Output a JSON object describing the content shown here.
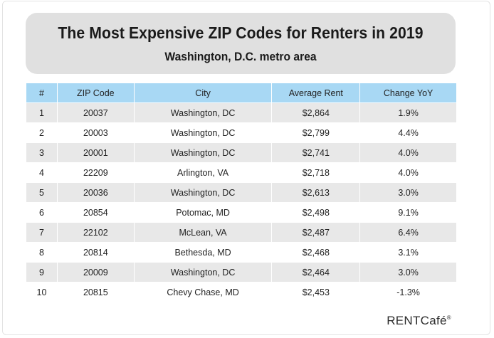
{
  "header": {
    "title": "The Most Expensive ZIP Codes for Renters in 2019",
    "subtitle": "Washington, D.C. metro area"
  },
  "table": {
    "columns": [
      "#",
      "ZIP Code",
      "City",
      "Average Rent",
      "Change YoY"
    ],
    "rows": [
      [
        "1",
        "20037",
        "Washington, DC",
        "$2,864",
        "1.9%"
      ],
      [
        "2",
        "20003",
        "Washington, DC",
        "$2,799",
        "4.4%"
      ],
      [
        "3",
        "20001",
        "Washington, DC",
        "$2,741",
        "4.0%"
      ],
      [
        "4",
        "22209",
        "Arlington, VA",
        "$2,718",
        "4.0%"
      ],
      [
        "5",
        "20036",
        "Washington, DC",
        "$2,613",
        "3.0%"
      ],
      [
        "6",
        "20854",
        "Potomac, MD",
        "$2,498",
        "9.1%"
      ],
      [
        "7",
        "22102",
        "McLean, VA",
        "$2,487",
        "6.4%"
      ],
      [
        "8",
        "20814",
        "Bethesda, MD",
        "$2,468",
        "3.1%"
      ],
      [
        "9",
        "20009",
        "Washington, DC",
        "$2,464",
        "3.0%"
      ],
      [
        "10",
        "20815",
        "Chevy Chase, MD",
        "$2,453",
        "-1.3%"
      ]
    ]
  },
  "logo": {
    "text": "RENTCafé",
    "mark": "®"
  },
  "colors": {
    "header_fill": "#a8d8f4",
    "banner_fill": "#e0e0e0",
    "row_alt": "#e8e8e8"
  }
}
